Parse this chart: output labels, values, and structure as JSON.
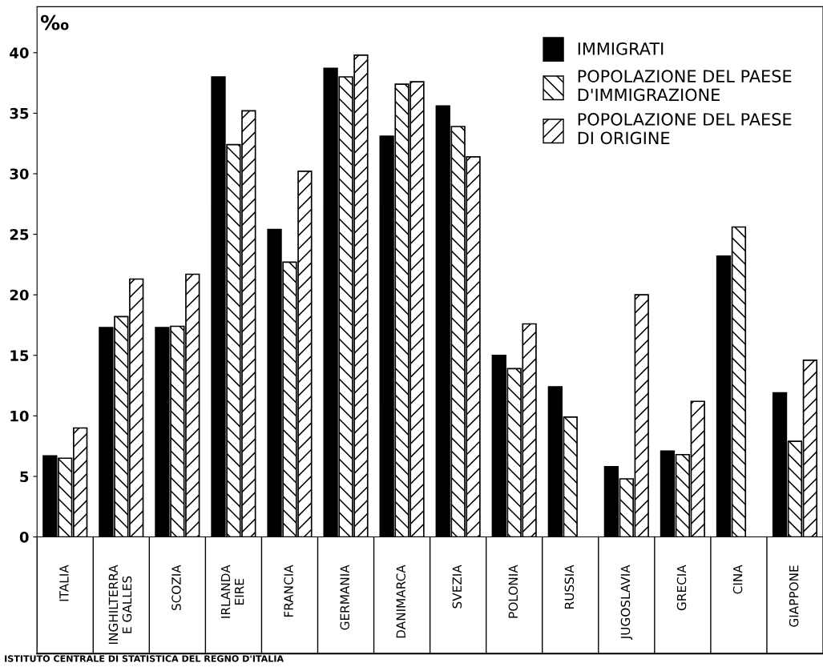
{
  "chart_data": {
    "type": "bar",
    "ylabel": "‰",
    "categories": [
      "ITALIA",
      "INGHILTERRA\nE GALLES",
      "SCOZIA",
      "IRLANDA\nEIRE",
      "FRANCIA",
      "GERMANIA",
      "DANIMARCA",
      "SVEZIA",
      "POLONIA",
      "RUSSIA",
      "JUGOSLAVIA",
      "GRECIA",
      "CINA",
      "GIAPPONE"
    ],
    "series": [
      {
        "name": "IMMIGRATI",
        "color": "#000000",
        "values": [
          6.7,
          17.3,
          17.3,
          38.0,
          25.4,
          38.7,
          33.1,
          35.6,
          15.0,
          12.4,
          5.8,
          7.1,
          23.2,
          11.9
        ]
      },
      {
        "name": "POPOLAZIONE DEL PAESE\nD'IMMIGRAZIONE",
        "color": "#000000",
        "values": [
          6.5,
          18.2,
          17.4,
          32.4,
          22.7,
          38.0,
          37.4,
          33.9,
          13.9,
          9.9,
          4.8,
          6.8,
          25.6,
          7.9
        ]
      },
      {
        "name": "POPOLAZIONE DEL PAESE\nDI ORIGINE",
        "color": "#000000",
        "values": [
          9.0,
          21.3,
          21.7,
          35.2,
          30.2,
          39.8,
          37.6,
          31.4,
          17.6,
          null,
          20.0,
          11.2,
          null,
          14.6
        ]
      }
    ],
    "ylim": [
      0,
      43.8
    ],
    "yticks": [
      0,
      5,
      10,
      15,
      20,
      25,
      30,
      35,
      40
    ],
    "grid": false,
    "legend": "top right",
    "annotations": [
      "ISTITUTO CENTRALE DI STATISTICA DEL REGNO D'ITALIA"
    ]
  }
}
